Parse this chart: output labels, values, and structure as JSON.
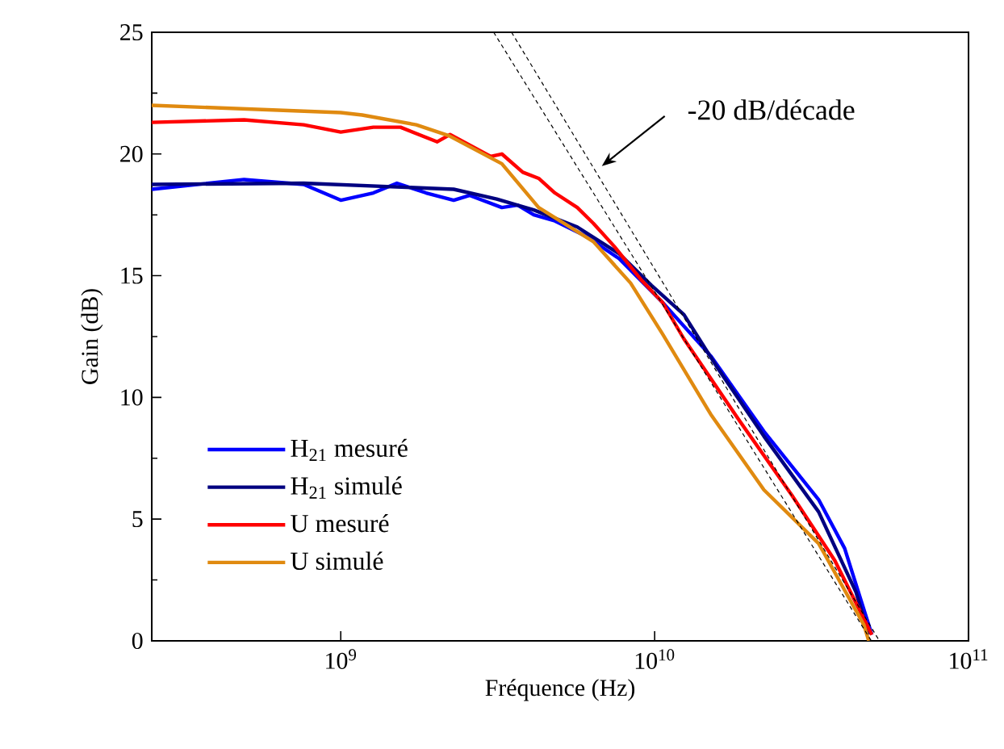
{
  "chart_data": {
    "type": "line",
    "xlabel": "Fréquence (Hz)",
    "ylabel": "Gain (dB)",
    "log": "x",
    "xlim": [
      250000000.0,
      100000000000.0
    ],
    "ylim": [
      0,
      25
    ],
    "xticks": [
      {
        "value": 1000000000.0,
        "label": "10$^{9}$"
      },
      {
        "value": 10000000000.0,
        "label": "10$^{10}$"
      },
      {
        "value": 100000000000.0,
        "label": "10$^{11}$"
      }
    ],
    "yticks": [
      0,
      5,
      10,
      15,
      20,
      25
    ],
    "grid": false,
    "legend": "bottom left",
    "marker": "none",
    "annotations": [
      "-20 dB/décade"
    ],
    "series": [
      {
        "name": "H$_{21}$ mesuré",
        "color": "#0000ff",
        "x": [
          250000000.0,
          492000000.0,
          762000000.0,
          1000000000.0,
          1270000000.0,
          1510000000.0,
          1870000000.0,
          2290000000.0,
          2570000000.0,
          3260000000.0,
          3660000000.0,
          4120000000.0,
          4810000000.0,
          6090000000.0,
          7710000000.0,
          10600000000.0,
          15100000000.0,
          22300000000.0,
          33300000000.0,
          40300000000.0,
          49200000000.0
        ],
        "values": [
          18.55,
          18.95,
          18.75,
          18.1,
          18.4,
          18.8,
          18.4,
          18.1,
          18.3,
          17.8,
          17.9,
          17.5,
          17.25,
          16.6,
          15.7,
          13.9,
          11.7,
          8.6,
          5.8,
          3.8,
          0.25
        ]
      },
      {
        "name": "H$_{21}$ simulé",
        "color": "#000080",
        "x": [
          250000000.0,
          762000000.0,
          2290000000.0,
          3140000000.0,
          4120000000.0,
          5670000000.0,
          7710000000.0,
          9770000000.0,
          12400000000.0,
          15700000000.0,
          22300000000.0,
          33300000000.0,
          43800000000.0,
          48100000000.0
        ],
        "values": [
          18.75,
          18.8,
          18.55,
          18.15,
          17.7,
          17.0,
          15.9,
          14.6,
          13.4,
          11.3,
          8.4,
          5.3,
          2.0,
          0.25
        ]
      },
      {
        "name": "U mesuré",
        "color": "#ff0000",
        "x": [
          250000000.0,
          492000000.0,
          762000000.0,
          1000000000.0,
          1270000000.0,
          1550000000.0,
          2030000000.0,
          2230000000.0,
          3000000000.0,
          3260000000.0,
          3800000000.0,
          4270000000.0,
          4810000000.0,
          5670000000.0,
          6380000000.0,
          7440000000.0,
          9100000000.0,
          10600000000.0,
          12400000000.0,
          18500000000.0,
          27300000000.0,
          37500000000.0,
          49200000000.0
        ],
        "values": [
          21.3,
          21.4,
          21.2,
          20.9,
          21.1,
          21.1,
          20.5,
          20.8,
          19.9,
          20.0,
          19.25,
          19.0,
          18.4,
          17.8,
          17.15,
          16.2,
          14.8,
          13.9,
          12.4,
          9.1,
          6.0,
          3.3,
          0.25
        ]
      },
      {
        "name": "U simulé",
        "color": "#e08a10",
        "x": [
          250000000.0,
          1000000000.0,
          1170000000.0,
          1740000000.0,
          2210000000.0,
          3260000000.0,
          4270000000.0,
          6380000000.0,
          8380000000.0,
          10600000000.0,
          15100000000.0,
          22300000000.0,
          33300000000.0,
          46400000000.0,
          48100000000.0
        ],
        "values": [
          22.0,
          21.7,
          21.6,
          21.2,
          20.75,
          19.6,
          17.8,
          16.4,
          14.7,
          12.6,
          9.3,
          6.2,
          4.0,
          0.66,
          0
        ]
      },
      {
        "type": "line",
        "line_style": "dashed",
        "color": "#000000",
        "x": [
          3070000000.0,
          49000000000.0
        ],
        "values": [
          25,
          0
        ]
      },
      {
        "type": "line",
        "line_style": "dashed",
        "color": "#000000",
        "x": [
          3500000000.0,
          52000000000.0
        ],
        "values": [
          25,
          0
        ]
      }
    ]
  }
}
